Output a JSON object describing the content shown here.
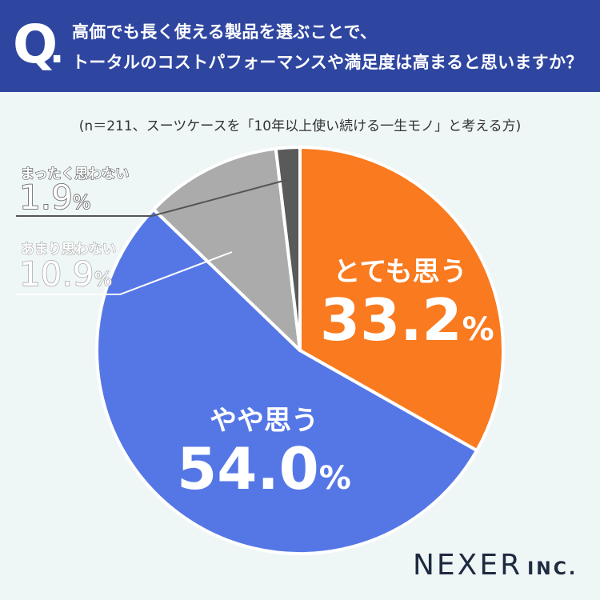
{
  "header": {
    "q_mark": "Q",
    "q_dot": ".",
    "question_line1": "高価でも長く使える製品を選ぶことで、",
    "question_line2": "トータルのコストパフォーマンスや満足度は高まると思いますか？",
    "bg_color": "#2f46a0"
  },
  "note": "(n＝211、スーツケースを「10年以上使い続ける一生モノ」と考える方)",
  "chart_data": {
    "type": "pie",
    "slices": [
      {
        "label": "とても思う",
        "value": 33.2,
        "value_text": "33.2",
        "color": "#f97a1f"
      },
      {
        "label": "やや思う",
        "value": 54.0,
        "value_text": "54.0",
        "color": "#5577e6"
      },
      {
        "label": "あまり思わない",
        "value": 10.9,
        "value_text": "10.9",
        "color": "#ababab"
      },
      {
        "label": "まったく思わない",
        "value": 1.9,
        "value_text": "1.9",
        "color": "#5a5a5a"
      }
    ],
    "unit": "%",
    "start_angle": "top",
    "direction": "clockwise",
    "legend": "none"
  },
  "logo": {
    "main": "NEXER",
    "sub": "INC."
  }
}
